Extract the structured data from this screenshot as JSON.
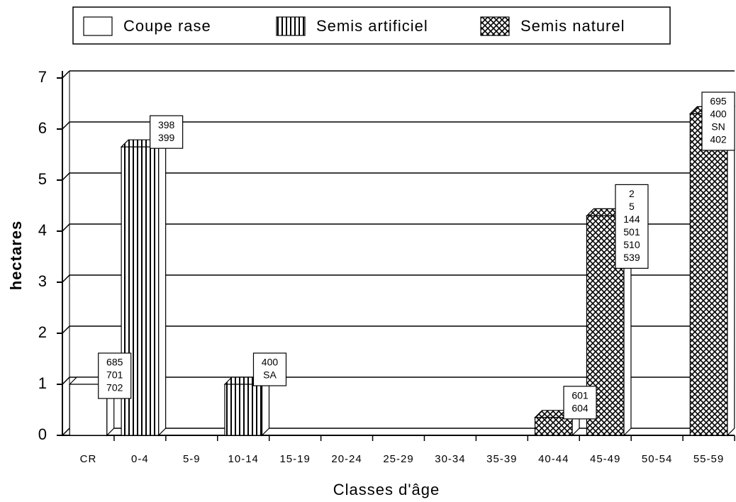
{
  "chart_data": {
    "type": "bar",
    "categories": [
      "CR",
      "0-4",
      "5-9",
      "10-14",
      "15-19",
      "20-24",
      "25-29",
      "30-34",
      "35-39",
      "40-44",
      "45-49",
      "50-54",
      "55-59"
    ],
    "series": [
      {
        "name": "Coupe rase",
        "pattern": "none",
        "values": [
          1.0,
          null,
          null,
          null,
          null,
          null,
          null,
          null,
          null,
          null,
          null,
          null,
          null
        ]
      },
      {
        "name": "Semis artificiel",
        "pattern": "vertical",
        "values": [
          null,
          5.65,
          null,
          1.0,
          null,
          null,
          null,
          null,
          null,
          null,
          null,
          null,
          null
        ]
      },
      {
        "name": "Semis naturel",
        "pattern": "crosshatch",
        "values": [
          null,
          null,
          null,
          null,
          null,
          null,
          null,
          null,
          null,
          0.35,
          4.3,
          null,
          6.3
        ]
      }
    ],
    "annotations": [
      [
        "685",
        "701",
        "702"
      ],
      [
        "398",
        "399"
      ],
      null,
      [
        "400",
        "SA"
      ],
      null,
      null,
      null,
      null,
      null,
      [
        "601",
        "604"
      ],
      [
        "2",
        "5",
        "144",
        "501",
        "510",
        "539"
      ],
      null,
      [
        "695",
        "400",
        "SN",
        "402"
      ]
    ],
    "ylim": [
      0,
      7
    ],
    "yticks": [
      0,
      1,
      2,
      3,
      4,
      5,
      6,
      7
    ],
    "ylabel": "hectares",
    "xlabel": "Classes d'âge",
    "grid": true,
    "legend": "top"
  }
}
